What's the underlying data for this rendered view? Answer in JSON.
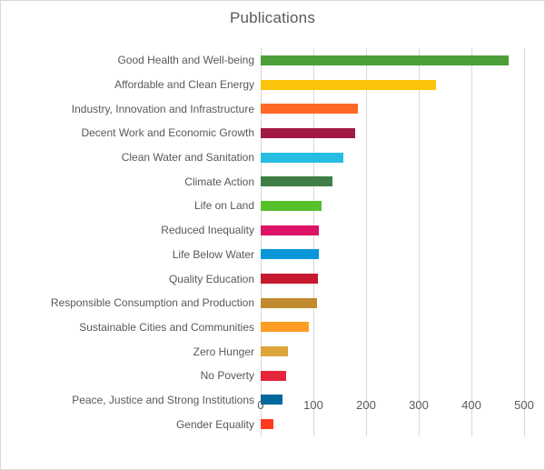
{
  "chart_data": {
    "type": "bar",
    "orientation": "horizontal",
    "title": "Publications",
    "categories": [
      "Good Health and Well-being",
      "Affordable and Clean Energy",
      "Industry, Innovation and Infrastructure",
      "Decent Work and Economic Growth",
      "Clean Water and Sanitation",
      "Climate Action",
      "Life on Land",
      "Reduced Inequality",
      "Life Below Water",
      "Quality Education",
      "Responsible Consumption and Production",
      "Sustainable Cities and Communities",
      "Zero Hunger",
      "No Poverty",
      "Peace, Justice and Strong Institutions",
      "Gender Equality"
    ],
    "values": [
      470,
      333,
      184,
      180,
      157,
      136,
      115,
      111,
      110,
      109,
      107,
      92,
      51,
      48,
      42,
      24
    ],
    "bar_colors": [
      "#4C9F38",
      "#FCC30B",
      "#FD6925",
      "#A21942",
      "#26BDE2",
      "#3F7E44",
      "#56C02B",
      "#DD1367",
      "#0A97D9",
      "#C5192D",
      "#BF8B2E",
      "#FD9D24",
      "#DDA63A",
      "#E5243B",
      "#00689D",
      "#FF3A21"
    ],
    "xlim": [
      0,
      500
    ],
    "x_ticks": [
      "0",
      "100",
      "200",
      "300",
      "400",
      "500"
    ],
    "grid": true,
    "legend": false,
    "styles": {
      "text_color": "#595959",
      "grid_color": "#D9D9D9",
      "border_color": "#D9D9D9",
      "background": "#FFFFFF"
    }
  }
}
